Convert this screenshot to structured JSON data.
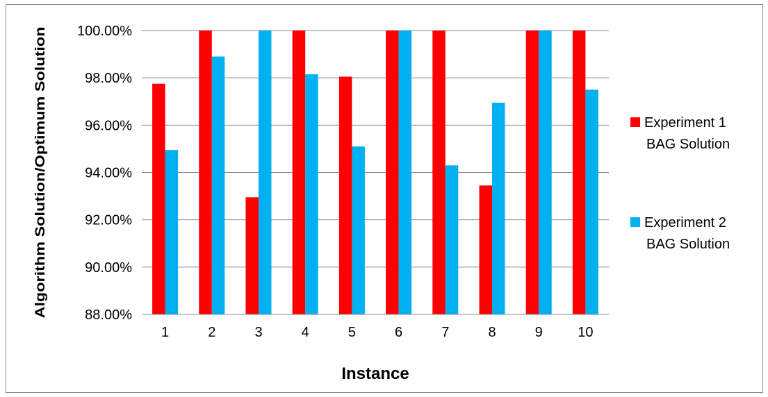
{
  "chart_data": {
    "type": "bar",
    "title": "",
    "xlabel": "Instance",
    "ylabel": "Algorithm Solution/Optimum Solution",
    "categories": [
      "1",
      "2",
      "3",
      "4",
      "5",
      "6",
      "7",
      "8",
      "9",
      "10"
    ],
    "ylim": [
      88,
      100
    ],
    "ytick_values": [
      88,
      90,
      92,
      94,
      96,
      98,
      100
    ],
    "ytick_labels": [
      "88.00%",
      "90.00%",
      "92.00%",
      "94.00%",
      "96.00%",
      "98.00%",
      "100.00%"
    ],
    "grid": "horizontal",
    "legend_position": "right",
    "series": [
      {
        "name": "Experiment 1 BAG Solution",
        "legend_lines": [
          "Experiment 1",
          "BAG Solution"
        ],
        "color": "#ff0000",
        "values": [
          97.75,
          100,
          92.95,
          100,
          98.05,
          100,
          100,
          93.45,
          100,
          100
        ]
      },
      {
        "name": "Experiment 2 BAG Solution",
        "legend_lines": [
          "Experiment 2",
          "BAG Solution"
        ],
        "color": "#00b0f0",
        "values": [
          94.95,
          98.9,
          100,
          98.15,
          95.1,
          100,
          94.3,
          96.95,
          100,
          97.5
        ]
      }
    ]
  }
}
